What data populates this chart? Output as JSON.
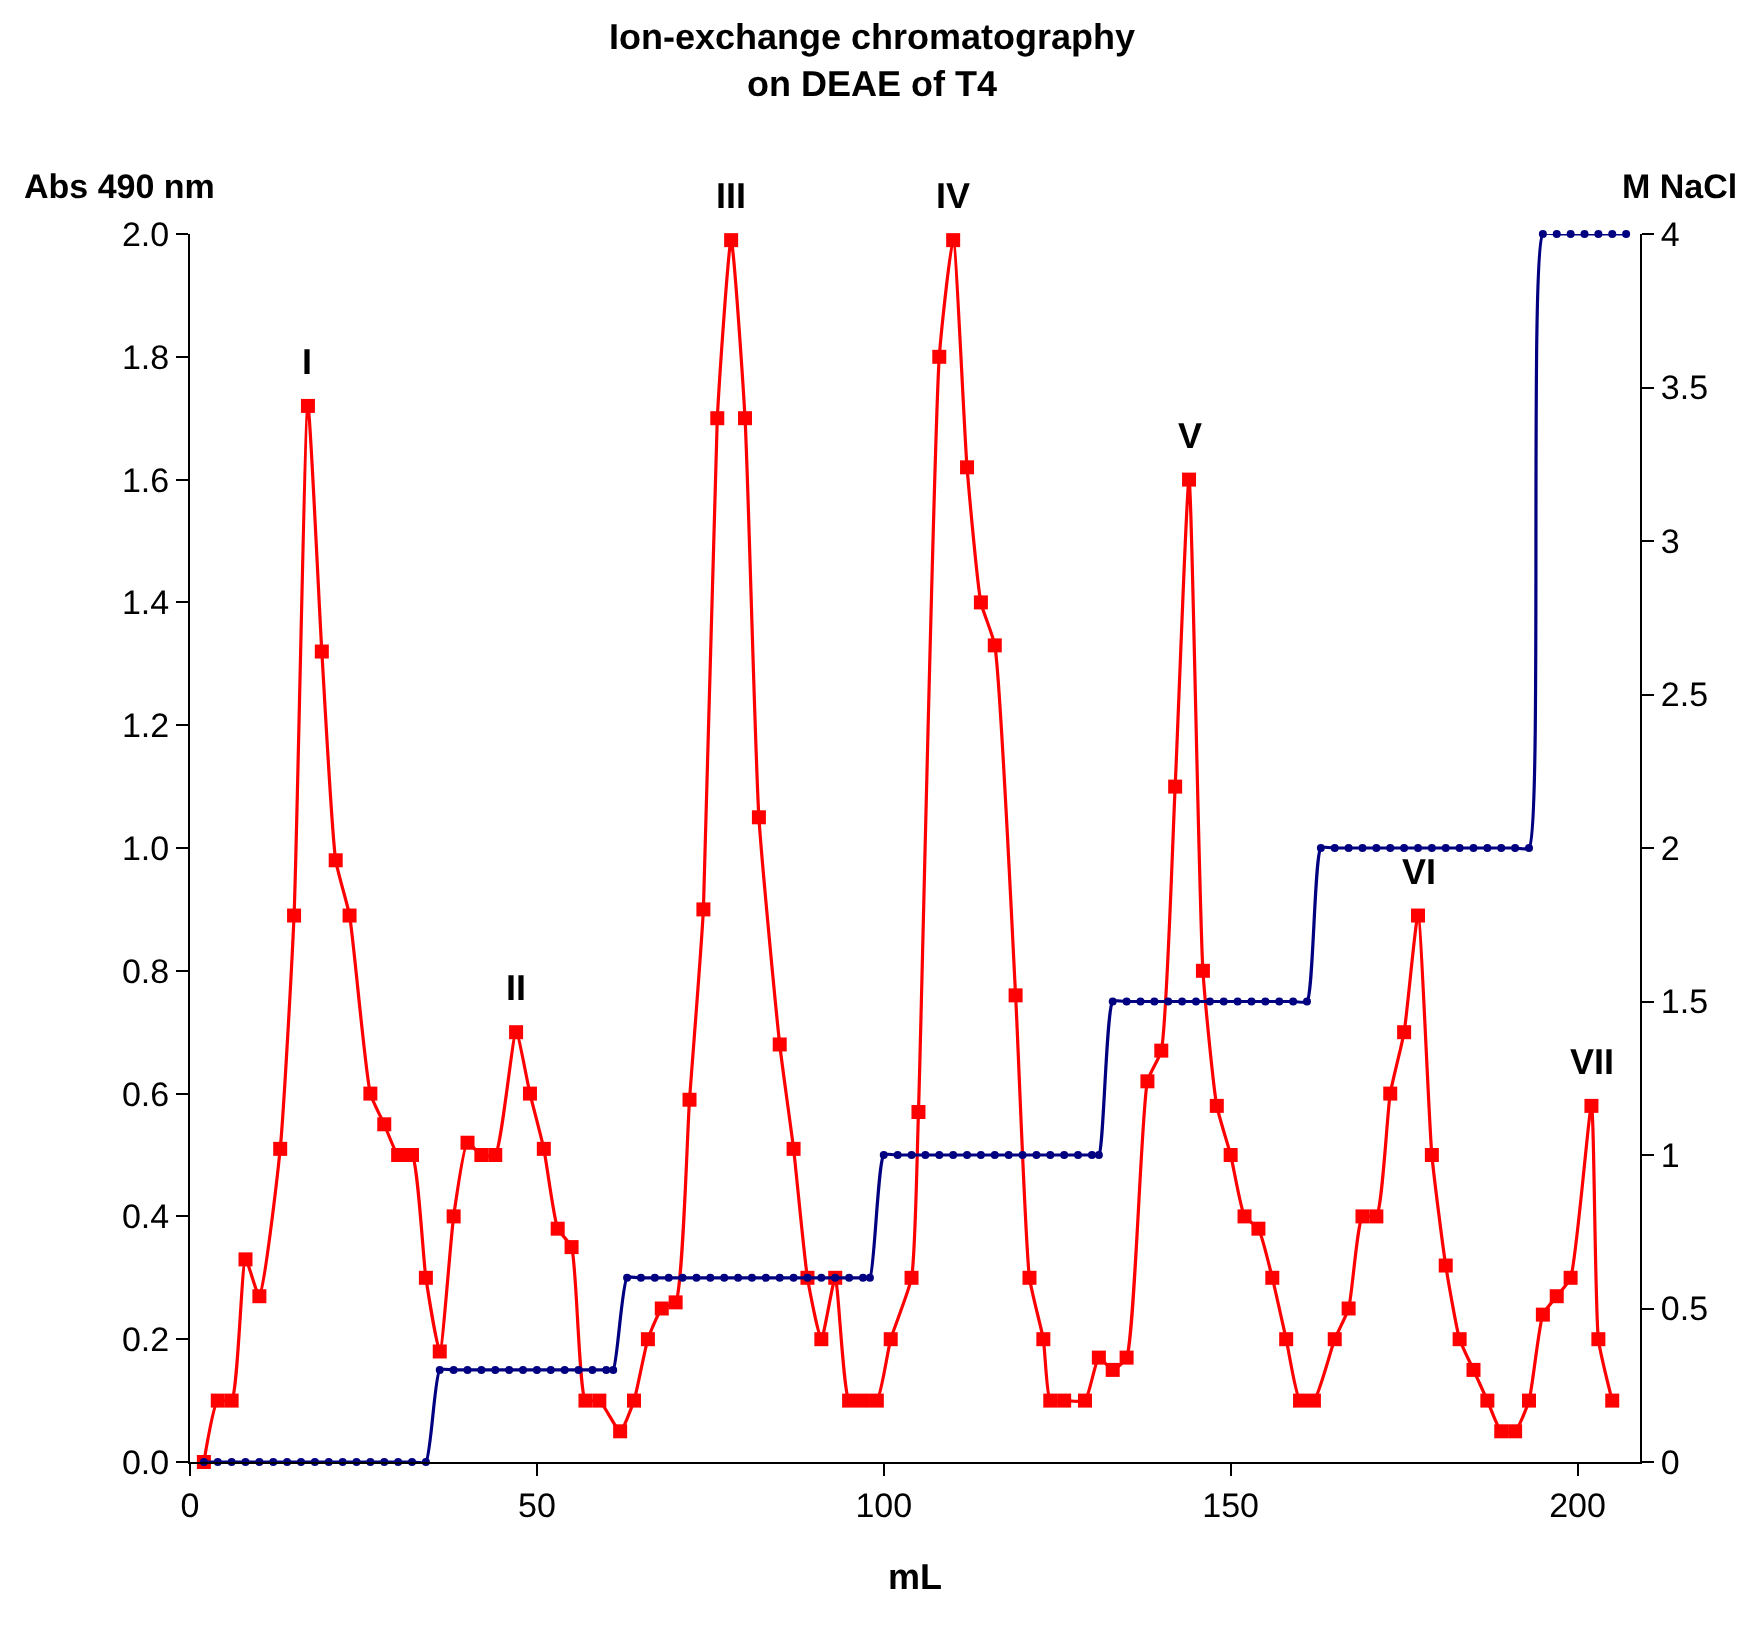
{
  "chart_data": {
    "type": "line",
    "title": "Ion-exchange chromatography\non DEAE of T4",
    "xlabel": "mL",
    "ylabel": "Abs 490 nm",
    "y2label": "M NaCl",
    "series": [
      {
        "color": "#ff0000",
        "marker": "square",
        "x": [
          2,
          4,
          6,
          8,
          10,
          13,
          15,
          17,
          19,
          21,
          23,
          26,
          28,
          30,
          32,
          34,
          36,
          38,
          40,
          42,
          44,
          47,
          49,
          51,
          53,
          55,
          57,
          59,
          62,
          64,
          66,
          68,
          70,
          72,
          74,
          76,
          78,
          80,
          82,
          85,
          87,
          89,
          91,
          93,
          95,
          97,
          99,
          101,
          104,
          105,
          108,
          110,
          112,
          114,
          116,
          119,
          121,
          123,
          124,
          126,
          129,
          131,
          133,
          135,
          138,
          140,
          142,
          144,
          146,
          148,
          150,
          152,
          154,
          156,
          158,
          160,
          162,
          165,
          167,
          169,
          171,
          173,
          175,
          177,
          179,
          181,
          183,
          185,
          187,
          189,
          191,
          193,
          195,
          197,
          199,
          202,
          203,
          205
        ],
        "values": [
          0,
          0.1,
          0.1,
          0.33,
          0.27,
          0.51,
          0.89,
          1.72,
          1.32,
          0.98,
          0.89,
          0.6,
          0.55,
          0.5,
          0.5,
          0.3,
          0.18,
          0.4,
          0.52,
          0.5,
          0.5,
          0.7,
          0.6,
          0.51,
          0.38,
          0.35,
          0.1,
          0.1,
          0.05,
          0.1,
          0.2,
          0.25,
          0.26,
          0.59,
          0.9,
          1.7,
          1.99,
          1.7,
          1.05,
          0.68,
          0.51,
          0.3,
          0.2,
          0.3,
          0.1,
          0.1,
          0.1,
          0.2,
          0.3,
          0.57,
          1.8,
          1.99,
          1.62,
          1.4,
          1.33,
          0.76,
          0.3,
          0.2,
          0.1,
          0.1,
          0.1,
          0.17,
          0.15,
          0.17,
          0.62,
          0.67,
          1.1,
          1.6,
          0.8,
          0.58,
          0.5,
          0.4,
          0.38,
          0.3,
          0.2,
          0.1,
          0.1,
          0.2,
          0.25,
          0.4,
          0.4,
          0.6,
          0.7,
          0.89,
          0.5,
          0.32,
          0.2,
          0.15,
          0.1,
          0.05,
          0.05,
          0.1,
          0.24,
          0.27,
          0.3,
          0.58,
          0.2,
          0.1
        ]
      },
      {
        "color": "#000080",
        "marker": "circle",
        "axis": "y2",
        "x": [
          2,
          4,
          6,
          8,
          10,
          12,
          14,
          16,
          18,
          20,
          22,
          24,
          26,
          28,
          30,
          32,
          34,
          36,
          38,
          40,
          42,
          44,
          46,
          48,
          50,
          52,
          54,
          56,
          58,
          60,
          61,
          63,
          65,
          67,
          69,
          71,
          73,
          75,
          77,
          79,
          81,
          83,
          85,
          87,
          89,
          91,
          93,
          95,
          97,
          98,
          100,
          102,
          104,
          106,
          108,
          110,
          112,
          114,
          116,
          118,
          120,
          122,
          124,
          126,
          128,
          130,
          131,
          133,
          135,
          137,
          139,
          141,
          143,
          145,
          147,
          149,
          151,
          153,
          155,
          157,
          159,
          161,
          163,
          165,
          167,
          169,
          171,
          173,
          175,
          177,
          179,
          181,
          183,
          185,
          187,
          189,
          191,
          193,
          195,
          197,
          199,
          201,
          203,
          205,
          207
        ],
        "values": [
          0,
          0,
          0,
          0,
          0,
          0,
          0,
          0,
          0,
          0,
          0,
          0,
          0,
          0,
          0,
          0,
          0,
          0.3,
          0.3,
          0.3,
          0.3,
          0.3,
          0.3,
          0.3,
          0.3,
          0.3,
          0.3,
          0.3,
          0.3,
          0.3,
          0.3,
          0.6,
          0.6,
          0.6,
          0.6,
          0.6,
          0.6,
          0.6,
          0.6,
          0.6,
          0.6,
          0.6,
          0.6,
          0.6,
          0.6,
          0.6,
          0.6,
          0.6,
          0.6,
          0.6,
          1,
          1,
          1,
          1,
          1,
          1,
          1,
          1,
          1,
          1,
          1,
          1,
          1,
          1,
          1,
          1,
          1,
          1.5,
          1.5,
          1.5,
          1.5,
          1.5,
          1.5,
          1.5,
          1.5,
          1.5,
          1.5,
          1.5,
          1.5,
          1.5,
          1.5,
          1.5,
          2,
          2,
          2,
          2,
          2,
          2,
          2,
          2,
          2,
          2,
          2,
          2,
          2,
          2,
          2,
          2,
          4,
          4,
          4,
          4,
          4,
          4,
          4
        ]
      }
    ],
    "annotations": [
      {
        "text": "I",
        "x": 17,
        "y": 1.72
      },
      {
        "text": "II",
        "x": 47,
        "y": 0.7
      },
      {
        "text": "III",
        "x": 78,
        "y": 1.99
      },
      {
        "text": "IV",
        "x": 110,
        "y": 1.99
      },
      {
        "text": "V",
        "x": 144,
        "y": 1.6
      },
      {
        "text": "VI",
        "x": 177,
        "y": 0.89
      },
      {
        "text": "VII",
        "x": 202,
        "y": 0.58
      }
    ],
    "xlim": [
      0,
      209
    ],
    "xticks": [
      0,
      50,
      100,
      150,
      200
    ],
    "ylim": [
      0,
      2
    ],
    "yticks": [
      {
        "value": 0,
        "label": "0.0"
      },
      {
        "value": 0.2,
        "label": "0.2"
      },
      {
        "value": 0.4,
        "label": "0.4"
      },
      {
        "value": 0.6,
        "label": "0.6"
      },
      {
        "value": 0.8,
        "label": "0.8"
      },
      {
        "value": 1,
        "label": "1.0"
      },
      {
        "value": 1.2,
        "label": "1.2"
      },
      {
        "value": 1.4,
        "label": "1.4"
      },
      {
        "value": 1.6,
        "label": "1.6"
      },
      {
        "value": 1.8,
        "label": "1.8"
      },
      {
        "value": 2,
        "label": "2.0"
      }
    ],
    "y2lim": [
      0,
      4
    ],
    "y2ticks": [
      0,
      0.5,
      1,
      1.5,
      2,
      2.5,
      3,
      3.5,
      4
    ],
    "line_style": "solid"
  }
}
